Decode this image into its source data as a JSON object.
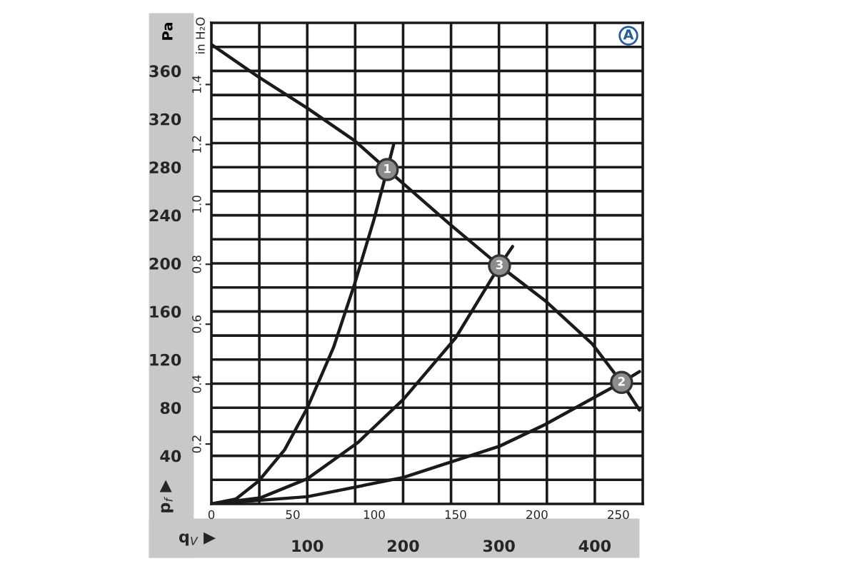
{
  "chart_data": {
    "type": "line",
    "xlabel": "q$_{V}$ ▶",
    "ylabel": "p$_{f}$ ▶",
    "y2label": "in H₂O",
    "annotations": [
      "Pa",
      "A",
      {
        "text": "1",
        "x": 108,
        "y": 278
      },
      {
        "text": "3",
        "x": 177,
        "y": 198
      },
      {
        "text": "2",
        "x": 252,
        "y": 101
      }
    ],
    "xlim": [
      0,
      265
    ],
    "xticks": [
      0,
      50,
      100,
      150,
      200,
      250
    ],
    "ylim": [
      0,
      400
    ],
    "yticks": [
      {
        "value": 20,
        "label": null
      },
      40,
      {
        "value": 60,
        "label": null
      },
      80,
      {
        "value": 100,
        "label": null
      },
      120,
      {
        "value": 140,
        "label": null
      },
      160,
      {
        "value": 180,
        "label": null
      },
      200,
      {
        "value": 220,
        "label": null
      },
      240,
      {
        "value": 260,
        "label": null
      },
      280,
      {
        "value": 300,
        "label": null
      },
      320,
      {
        "value": 340,
        "label": null
      },
      360,
      {
        "value": 380,
        "label": null
      }
    ],
    "x2lim": [
      0,
      450
    ],
    "x2ticks": [
      {
        "value": 50,
        "label": null
      },
      100,
      {
        "value": 150,
        "label": null
      },
      200,
      {
        "value": 250,
        "label": null
      },
      300,
      {
        "value": 350,
        "label": null
      },
      400
    ],
    "y2lim": [
      0,
      1.606
    ],
    "y2ticks": [
      0.2,
      0.4,
      0.6,
      0.8,
      {
        "value": 1.0,
        "label": "1.0"
      },
      1.2,
      1.4
    ],
    "grid": true,
    "series": [
      {
        "color": "#1a1a1a",
        "x": [
          0,
          29,
          59,
          88,
          108,
          147,
          177,
          205,
          234,
          252,
          263
        ],
        "values": [
          382,
          355,
          329,
          302,
          278,
          232,
          198,
          169,
          133,
          101,
          78
        ]
      },
      {
        "color": "#1a1a1a",
        "x": [
          0,
          15,
          29,
          45,
          59,
          75,
          88,
          100,
          108,
          112
        ],
        "values": [
          0,
          4,
          19,
          45,
          80,
          130,
          183,
          237,
          278,
          299
        ]
      },
      {
        "color": "#1a1a1a",
        "x": [
          0,
          30,
          59,
          90,
          118,
          150,
          177,
          185
        ],
        "values": [
          0,
          5,
          21,
          51,
          87,
          138,
          198,
          214
        ]
      },
      {
        "color": "#1a1a1a",
        "x": [
          0,
          59,
          118,
          177,
          205,
          252,
          263
        ],
        "values": [
          0,
          6,
          22,
          48,
          66,
          101,
          110
        ]
      },
      {
        "type": "scatter",
        "marker": "circle",
        "color": "#8c8c8c",
        "x": [
          108,
          177,
          252
        ],
        "values": [
          278,
          198,
          101
        ]
      }
    ]
  }
}
